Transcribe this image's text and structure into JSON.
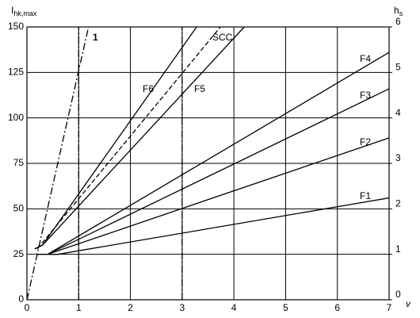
{
  "chart_data": {
    "type": "line",
    "ylabel": {
      "main": "I",
      "sub": "hk,max"
    },
    "y2label": {
      "main": "h",
      "sub": "s"
    },
    "xlabel": "v",
    "xlim": [
      0,
      7
    ],
    "xticks": [
      0,
      1,
      2,
      3,
      4,
      5,
      6,
      7
    ],
    "ylim": [
      0,
      150
    ],
    "yticks": [
      0,
      25,
      50,
      75,
      100,
      125,
      150
    ],
    "y2lim": [
      0,
      6
    ],
    "y2ticks": [
      0,
      1,
      2,
      3,
      4,
      5,
      6
    ],
    "grid": true,
    "series": [
      {
        "name": "F1",
        "color": "#000000",
        "style": "solid",
        "x": [
          0.2,
          0.6,
          7
        ],
        "values": [
          25,
          25,
          56
        ]
      },
      {
        "name": "F2",
        "color": "#000000",
        "style": "solid",
        "x": [
          0.4,
          7
        ],
        "values": [
          25,
          89
        ]
      },
      {
        "name": "F3",
        "color": "#000000",
        "style": "solid",
        "x": [
          0.4,
          7
        ],
        "values": [
          25,
          116
        ]
      },
      {
        "name": "F4",
        "color": "#000000",
        "style": "solid",
        "x": [
          0.4,
          7
        ],
        "values": [
          25,
          136
        ]
      },
      {
        "name": "F5",
        "color": "#000000",
        "style": "solid",
        "x": [
          0.15,
          0.3,
          4.2
        ],
        "values": [
          28,
          30,
          150
        ]
      },
      {
        "name": "F6",
        "color": "#000000",
        "style": "solid",
        "x": [
          0.15,
          0.3,
          3.28
        ],
        "values": [
          28,
          30,
          150
        ]
      },
      {
        "name": "SCC",
        "color": "#000000",
        "style": "dashed",
        "x": [
          0.2,
          3.74
        ],
        "values": [
          28,
          150
        ]
      },
      {
        "name": "1",
        "color": "#000000",
        "style": "dashdot",
        "x": [
          0,
          1.19
        ],
        "values": [
          0,
          150
        ]
      },
      {
        "color": "#000000",
        "style": "dashdot",
        "x": [
          1,
          1
        ],
        "values": [
          0,
          150
        ]
      },
      {
        "color": "#000000",
        "style": "dashdot",
        "x": [
          3,
          3
        ],
        "values": [
          0,
          150
        ]
      }
    ]
  }
}
